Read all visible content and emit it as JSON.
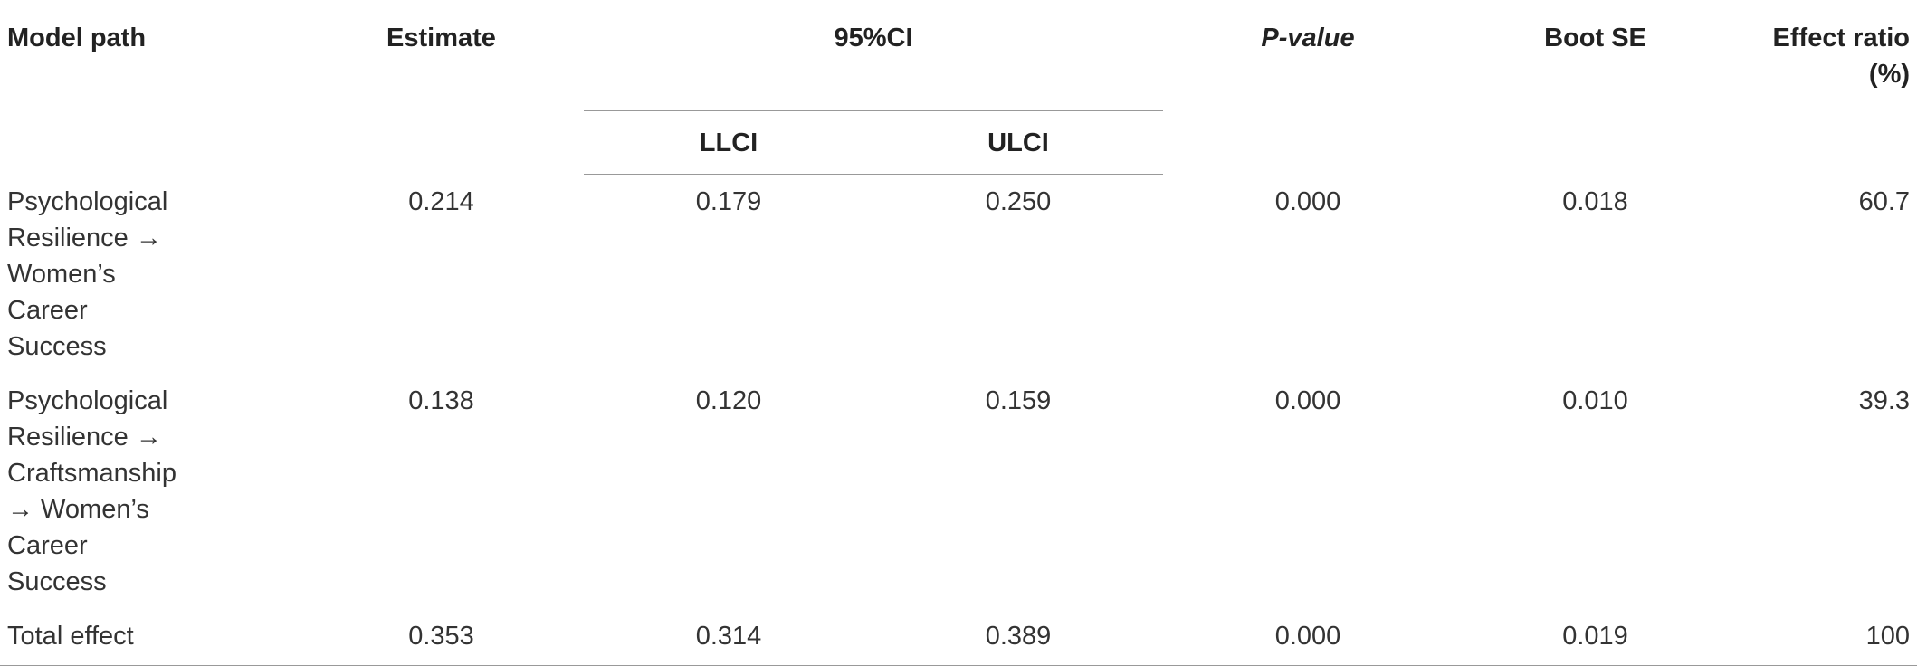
{
  "table": {
    "headers": {
      "model_path": "Model path",
      "estimate": "Estimate",
      "ci": "95%CI",
      "llci": "LLCI",
      "ulci": "ULCI",
      "p_value": "P-value",
      "boot_se": "Boot SE",
      "effect_ratio": "Effect ratio (%)"
    },
    "rows": [
      {
        "path": "Psychological Resilience → Women’s Career Success",
        "estimate": "0.214",
        "llci": "0.179",
        "ulci": "0.250",
        "p": "0.000",
        "se": "0.018",
        "ratio": "60.7"
      },
      {
        "path": "Psychological Resilience → Craftsmanship → Women’s Career Success",
        "estimate": "0.138",
        "llci": "0.120",
        "ulci": "0.159",
        "p": "0.000",
        "se": "0.010",
        "ratio": "39.3"
      },
      {
        "path": "Total effect",
        "estimate": "0.353",
        "llci": "0.314",
        "ulci": "0.389",
        "p": "0.000",
        "se": "0.019",
        "ratio": "100"
      }
    ]
  }
}
